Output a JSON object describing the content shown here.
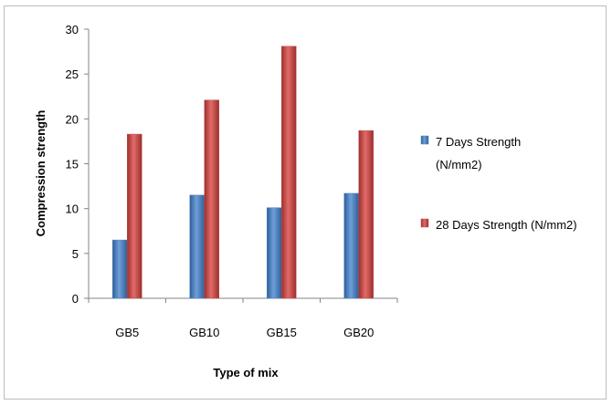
{
  "chart_data": {
    "type": "bar",
    "categories": [
      "GB5",
      "GB10",
      "GB15",
      "GB20"
    ],
    "series": [
      {
        "name": "7 Days Strength (N/mm2)",
        "values": [
          6.5,
          11.5,
          10.1,
          11.7
        ],
        "color": "#4f81bd"
      },
      {
        "name": "28 Days Strength (N/mm2)",
        "values": [
          18.3,
          22.1,
          28.1,
          18.7
        ],
        "color": "#c0504d"
      }
    ],
    "legend_lines": [
      [
        "7 Days Strength",
        "(N/mm2)"
      ],
      [
        "28 Days Strength (N/mm2)"
      ]
    ],
    "xlabel": "Type of mix",
    "ylabel": "Compression strength",
    "ylim": [
      0,
      30
    ],
    "yticks": [
      0,
      5,
      10,
      15,
      20,
      25,
      30
    ],
    "grid": false,
    "legend_position": "right"
  }
}
